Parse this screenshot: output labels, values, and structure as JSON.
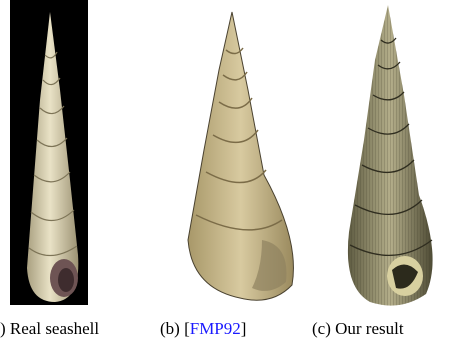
{
  "captions": [
    {
      "text": ") Real seashell"
    },
    {
      "prefix": "(b) [",
      "link": "FMP92",
      "suffix": "]"
    },
    {
      "text": "(c) Our result"
    }
  ]
}
